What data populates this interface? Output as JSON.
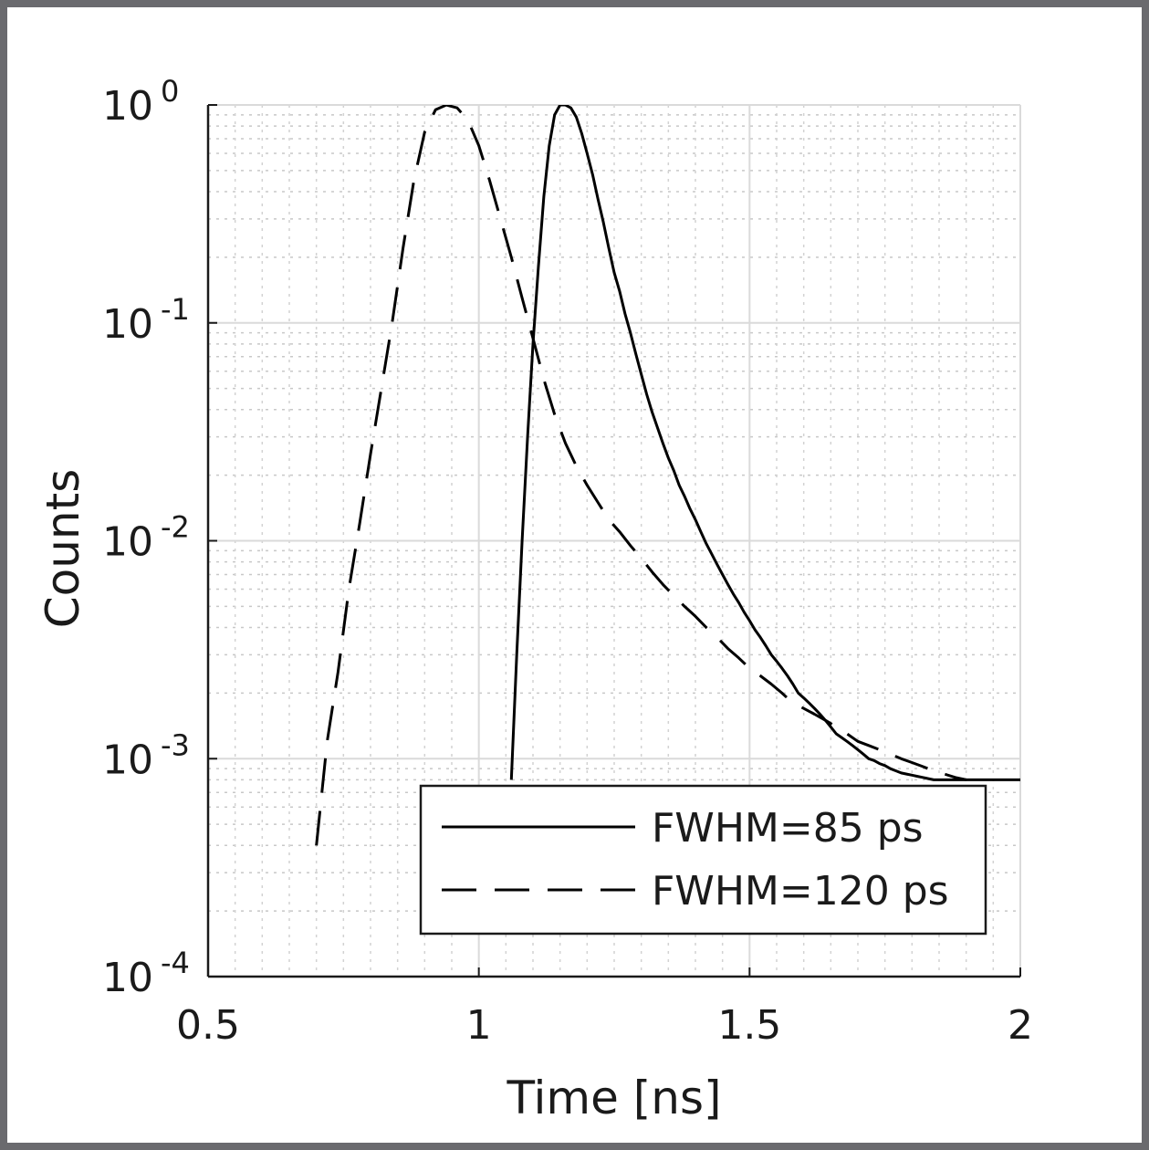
{
  "chart_data": {
    "type": "line",
    "title": "",
    "xlabel": "Time [ns]",
    "ylabel": "Counts",
    "xlim": [
      0.5,
      2
    ],
    "ylim": [
      0.0001,
      1
    ],
    "yscale": "log",
    "xticks": [
      {
        "value": 0.5,
        "label": "0.5"
      },
      {
        "value": 1,
        "label": "1"
      },
      {
        "value": 1.5,
        "label": "1.5"
      },
      {
        "value": 2,
        "label": "2"
      }
    ],
    "yticks": [
      {
        "value": 1,
        "base": "10",
        "exponent": "0"
      },
      {
        "value": 0.1,
        "base": "10",
        "exponent": "-1"
      },
      {
        "value": 0.01,
        "base": "10",
        "exponent": "-2"
      },
      {
        "value": 0.001,
        "base": "10",
        "exponent": "-3"
      },
      {
        "value": 0.0001,
        "base": "10",
        "exponent": "-4"
      }
    ],
    "grid": true,
    "minor_grid": true,
    "legend_position": "bottom-right",
    "series": [
      {
        "name": "FWHM=85 ps",
        "style": "solid",
        "color": "#000000",
        "x": [
          1.06,
          1.07,
          1.08,
          1.09,
          1.1,
          1.11,
          1.12,
          1.13,
          1.14,
          1.15,
          1.16,
          1.17,
          1.18,
          1.19,
          1.2,
          1.21,
          1.22,
          1.23,
          1.24,
          1.25,
          1.26,
          1.27,
          1.28,
          1.29,
          1.3,
          1.31,
          1.32,
          1.33,
          1.34,
          1.35,
          1.36,
          1.37,
          1.38,
          1.39,
          1.4,
          1.41,
          1.42,
          1.43,
          1.44,
          1.45,
          1.46,
          1.47,
          1.48,
          1.49,
          1.5,
          1.51,
          1.52,
          1.53,
          1.54,
          1.55,
          1.56,
          1.57,
          1.58,
          1.59,
          1.6,
          1.61,
          1.62,
          1.63,
          1.64,
          1.65,
          1.66,
          1.67,
          1.68,
          1.69,
          1.7,
          1.71,
          1.72,
          1.73,
          1.74,
          1.75,
          1.76,
          1.77,
          1.78,
          1.79,
          1.8,
          1.81,
          1.82,
          1.83,
          1.84,
          1.85,
          1.86,
          1.87,
          1.88,
          1.89,
          1.9,
          1.91,
          1.92,
          1.93,
          1.94,
          1.95,
          1.96,
          1.97,
          1.98,
          1.99,
          2.0
        ],
        "y": [
          0.0008,
          0.003,
          0.01,
          0.03,
          0.08,
          0.18,
          0.38,
          0.65,
          0.9,
          1.0,
          1.0,
          0.97,
          0.88,
          0.74,
          0.6,
          0.48,
          0.37,
          0.29,
          0.22,
          0.17,
          0.14,
          0.11,
          0.09,
          0.072,
          0.058,
          0.047,
          0.039,
          0.033,
          0.028,
          0.024,
          0.021,
          0.018,
          0.016,
          0.014,
          0.0125,
          0.011,
          0.0097,
          0.0087,
          0.0078,
          0.007,
          0.0063,
          0.0057,
          0.0052,
          0.0047,
          0.0043,
          0.0039,
          0.0036,
          0.0033,
          0.003,
          0.0028,
          0.0026,
          0.0024,
          0.0022,
          0.002,
          0.0019,
          0.0018,
          0.0017,
          0.0016,
          0.0015,
          0.0014,
          0.0013,
          0.00125,
          0.0012,
          0.00115,
          0.0011,
          0.00105,
          0.001,
          0.00098,
          0.00095,
          0.00093,
          0.0009,
          0.00088,
          0.00086,
          0.00085,
          0.00084,
          0.00083,
          0.00082,
          0.00081,
          0.0008,
          0.0008,
          0.0008,
          0.0008,
          0.0008,
          0.0008,
          0.0008,
          0.0008,
          0.0008,
          0.0008,
          0.0008,
          0.0008,
          0.0008,
          0.0008,
          0.0008,
          0.0008,
          0.0008
        ]
      },
      {
        "name": "FWHM=120 ps",
        "style": "dashed",
        "color": "#000000",
        "x": [
          0.7,
          0.72,
          0.74,
          0.76,
          0.78,
          0.8,
          0.82,
          0.84,
          0.86,
          0.88,
          0.9,
          0.92,
          0.94,
          0.96,
          0.98,
          1.0,
          1.02,
          1.04,
          1.06,
          1.08,
          1.1,
          1.12,
          1.14,
          1.16,
          1.18,
          1.2,
          1.22,
          1.24,
          1.26,
          1.28,
          1.3,
          1.32,
          1.34,
          1.36,
          1.38,
          1.4,
          1.42,
          1.44,
          1.46,
          1.48,
          1.5,
          1.52,
          1.54,
          1.56,
          1.58,
          1.6,
          1.62,
          1.64,
          1.66,
          1.68,
          1.7,
          1.72,
          1.74,
          1.76,
          1.78,
          1.8,
          1.82,
          1.84,
          1.86,
          1.88,
          1.9
        ],
        "y": [
          0.0004,
          0.0012,
          0.0025,
          0.006,
          0.012,
          0.025,
          0.05,
          0.1,
          0.22,
          0.45,
          0.75,
          0.95,
          1.0,
          0.97,
          0.85,
          0.65,
          0.45,
          0.3,
          0.2,
          0.13,
          0.085,
          0.055,
          0.038,
          0.028,
          0.022,
          0.018,
          0.015,
          0.0125,
          0.011,
          0.0095,
          0.0083,
          0.0072,
          0.0063,
          0.0056,
          0.005,
          0.0045,
          0.004,
          0.0036,
          0.0032,
          0.0029,
          0.0026,
          0.0024,
          0.0022,
          0.002,
          0.0018,
          0.0017,
          0.0016,
          0.0015,
          0.0014,
          0.0013,
          0.0012,
          0.00115,
          0.0011,
          0.00105,
          0.001,
          0.00096,
          0.00092,
          0.00088,
          0.00085,
          0.00082,
          0.0008
        ]
      }
    ]
  }
}
